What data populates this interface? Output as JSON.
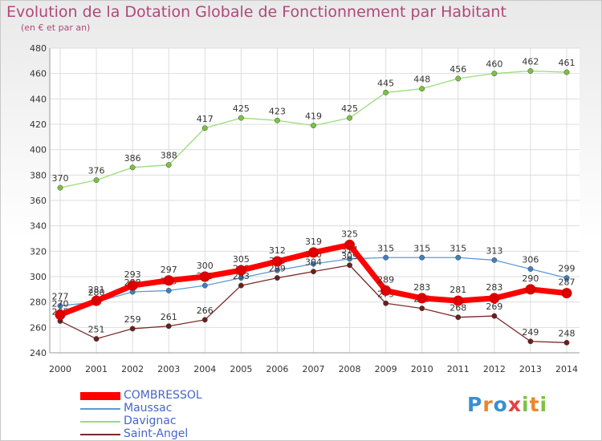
{
  "header": {
    "title": "Evolution de la Dotation Globale de Fonctionnement par Habitant",
    "subtitle": "(en € et par an)"
  },
  "logo_text": "Proxiti",
  "chart_data": {
    "type": "line",
    "x": [
      2000,
      2001,
      2002,
      2003,
      2004,
      2005,
      2006,
      2007,
      2008,
      2009,
      2010,
      2011,
      2012,
      2013,
      2014
    ],
    "ylim": [
      240,
      480
    ],
    "yticks": [
      240,
      260,
      280,
      300,
      320,
      340,
      360,
      380,
      400,
      420,
      440,
      460,
      480
    ],
    "grid": true,
    "legend_position": "bottom-left",
    "series": [
      {
        "name": "Maussac",
        "color": "#5b9bd5",
        "marker": "#3f7fc0",
        "values": [
          277,
          280,
          288,
          289,
          293,
          299,
          305,
          310,
          314,
          315,
          315,
          315,
          313,
          306,
          299
        ]
      },
      {
        "name": "Davignac",
        "color": "#99dd77",
        "marker": "#7cc242",
        "values": [
          370,
          376,
          386,
          388,
          417,
          425,
          423,
          419,
          425,
          445,
          448,
          456,
          460,
          462,
          461
        ]
      },
      {
        "name": "Saint-Angel",
        "color": "#7a2a2a",
        "marker": "#6b1e1e",
        "values": [
          265,
          251,
          259,
          261,
          266,
          293,
          299,
          304,
          309,
          279,
          275,
          268,
          269,
          249,
          248
        ]
      },
      {
        "name": "COMBRESSOL",
        "color": "#ff0000",
        "marker": "#dd0000",
        "values": [
          270,
          281,
          293,
          297,
          300,
          305,
          312,
          319,
          325,
          289,
          283,
          281,
          283,
          290,
          287
        ]
      }
    ]
  }
}
